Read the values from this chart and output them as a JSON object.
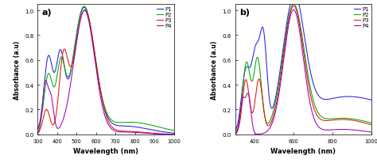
{
  "title_a": "a)",
  "title_b": "b)",
  "xlabel": "Wavelength (nm)",
  "ylabel_a": "Absorbance (a.u)",
  "ylabel_b": "Absorbance (a.u)",
  "legend_labels": [
    "P1",
    "P2",
    "P3",
    "P4"
  ],
  "colors": [
    "#2222dd",
    "#00aa00",
    "#ee1100",
    "#9900bb"
  ],
  "xlim_a": [
    300,
    1000
  ],
  "xlim_b": [
    300,
    1000
  ],
  "ylim_a": [
    0,
    1.05
  ],
  "ylim_b": [
    0,
    1.05
  ],
  "xticks_a": [
    300,
    400,
    500,
    600,
    700,
    800,
    900,
    1000
  ],
  "xticks_b": [
    400,
    600,
    800,
    1000
  ],
  "yticks": [
    0.0,
    0.2,
    0.4,
    0.6,
    0.8,
    1.0
  ],
  "background": "#f0f0f0"
}
